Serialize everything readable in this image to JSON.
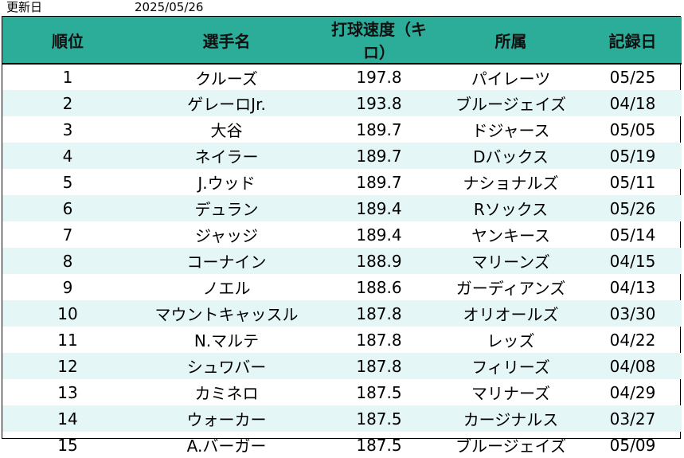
{
  "meta": {
    "updated_label": "更新日",
    "updated_date": "2025/05/26"
  },
  "colors": {
    "header_bg": "#2bad99",
    "stripe_bg": "#e4f6f5"
  },
  "table": {
    "headers": [
      "順位",
      "選手名",
      "打球速度（キロ）",
      "所属",
      "記録日"
    ],
    "rows": [
      {
        "rank": "1",
        "player": "クルーズ",
        "speed": "197.8",
        "team": "パイレーツ",
        "date": "05/25"
      },
      {
        "rank": "2",
        "player": "ゲレーロJr.",
        "speed": "193.8",
        "team": "ブルージェイズ",
        "date": "04/18"
      },
      {
        "rank": "3",
        "player": "大谷",
        "speed": "189.7",
        "team": "ドジャース",
        "date": "05/05"
      },
      {
        "rank": "4",
        "player": "ネイラー",
        "speed": "189.7",
        "team": "Dバックス",
        "date": "05/19"
      },
      {
        "rank": "5",
        "player": "J.ウッド",
        "speed": "189.7",
        "team": "ナショナルズ",
        "date": "05/11"
      },
      {
        "rank": "6",
        "player": "デュラン",
        "speed": "189.4",
        "team": "Rソックス",
        "date": "05/26"
      },
      {
        "rank": "7",
        "player": "ジャッジ",
        "speed": "189.4",
        "team": "ヤンキース",
        "date": "05/14"
      },
      {
        "rank": "8",
        "player": "コーナイン",
        "speed": "188.9",
        "team": "マリーンズ",
        "date": "04/15"
      },
      {
        "rank": "9",
        "player": "ノエル",
        "speed": "188.6",
        "team": "ガーディアンズ",
        "date": "04/13"
      },
      {
        "rank": "10",
        "player": "マウントキャッスル",
        "speed": "187.8",
        "team": "オリオールズ",
        "date": "03/30"
      },
      {
        "rank": "11",
        "player": "N.マルテ",
        "speed": "187.8",
        "team": "レッズ",
        "date": "04/22"
      },
      {
        "rank": "12",
        "player": "シュワバー",
        "speed": "187.8",
        "team": "フィリーズ",
        "date": "04/08"
      },
      {
        "rank": "13",
        "player": "カミネロ",
        "speed": "187.5",
        "team": "マリナーズ",
        "date": "04/29"
      },
      {
        "rank": "14",
        "player": "ウォーカー",
        "speed": "187.5",
        "team": "カージナルス",
        "date": "03/27"
      },
      {
        "rank": "15",
        "player": "A.バーガー",
        "speed": "187.5",
        "team": "ブルージェイズ",
        "date": "05/09"
      }
    ]
  }
}
